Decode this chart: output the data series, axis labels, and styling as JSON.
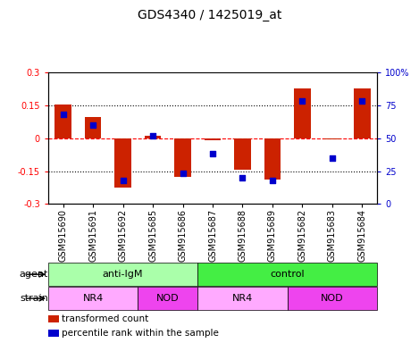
{
  "title": "GDS4340 / 1425019_at",
  "samples": [
    "GSM915690",
    "GSM915691",
    "GSM915692",
    "GSM915685",
    "GSM915686",
    "GSM915687",
    "GSM915688",
    "GSM915689",
    "GSM915682",
    "GSM915683",
    "GSM915684"
  ],
  "transformed_count": [
    0.152,
    0.095,
    -0.225,
    0.01,
    -0.175,
    -0.01,
    -0.145,
    -0.19,
    0.225,
    -0.005,
    0.225
  ],
  "percentile_rank": [
    68,
    60,
    18,
    52,
    23,
    38,
    20,
    18,
    78,
    35,
    78
  ],
  "ylim": [
    -0.3,
    0.3
  ],
  "y2lim": [
    0,
    100
  ],
  "yticks": [
    -0.3,
    -0.15,
    0,
    0.15,
    0.3
  ],
  "ytick_labels": [
    "-0.3",
    "-0.15",
    "0",
    "0.15",
    "0.3"
  ],
  "y2ticks": [
    0,
    25,
    50,
    75,
    100
  ],
  "y2ticklabels": [
    "0",
    "25",
    "50",
    "75",
    "100%"
  ],
  "hlines_dotted": [
    -0.15,
    0.15
  ],
  "hline_dashed": 0,
  "bar_color": "#cc2200",
  "scatter_color": "#0000cc",
  "agent_groups": [
    {
      "label": "anti-IgM",
      "start": 0,
      "end": 5,
      "color": "#aaffaa"
    },
    {
      "label": "control",
      "start": 5,
      "end": 11,
      "color": "#44ee44"
    }
  ],
  "strain_groups": [
    {
      "label": "NR4",
      "start": 0,
      "end": 3,
      "color": "#ffaaff"
    },
    {
      "label": "NOD",
      "start": 3,
      "end": 5,
      "color": "#ee44ee"
    },
    {
      "label": "NR4",
      "start": 5,
      "end": 8,
      "color": "#ffaaff"
    },
    {
      "label": "NOD",
      "start": 8,
      "end": 11,
      "color": "#ee44ee"
    }
  ],
  "legend_items": [
    {
      "label": "transformed count",
      "color": "#cc2200"
    },
    {
      "label": "percentile rank within the sample",
      "color": "#0000cc"
    }
  ],
  "bar_width": 0.55,
  "scatter_size": 22,
  "tick_label_fontsize": 7,
  "annotation_fontsize": 8,
  "title_fontsize": 10,
  "legend_fontsize": 7.5
}
